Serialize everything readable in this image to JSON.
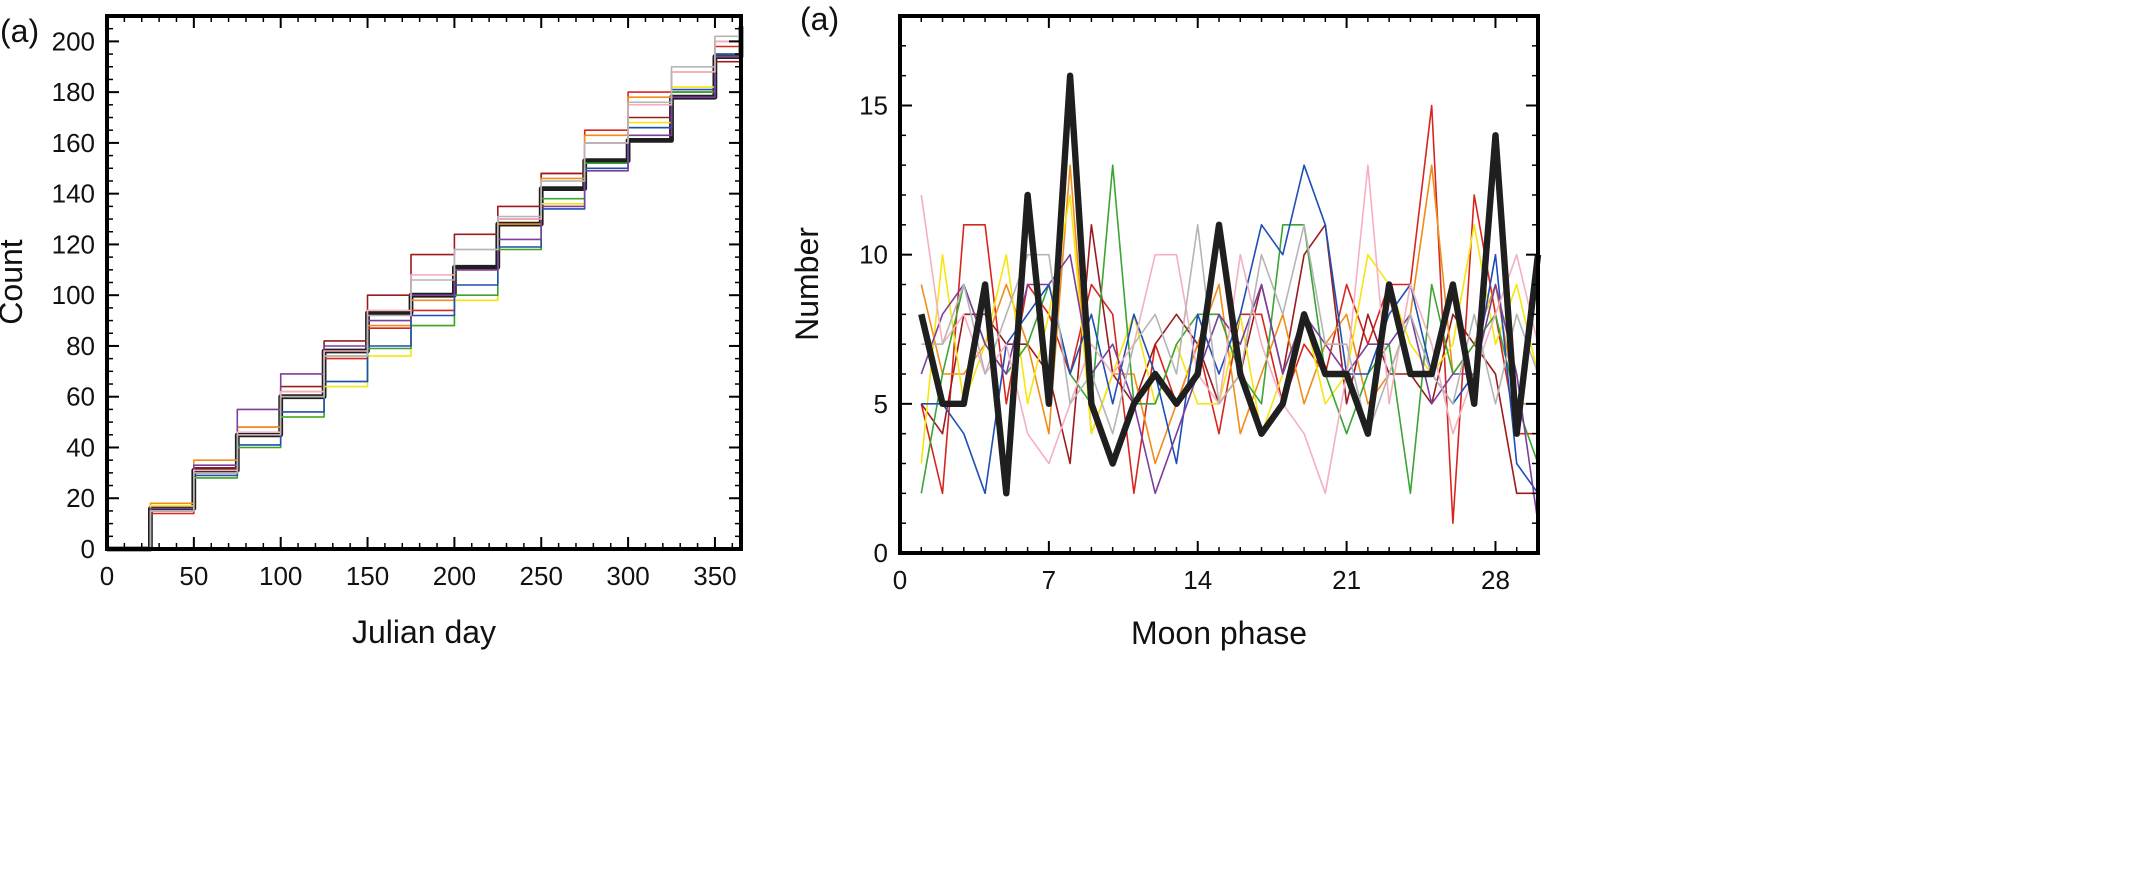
{
  "chart_data": [
    {
      "type": "line",
      "panel_label": "(a)",
      "xlabel": "Julian day",
      "ylabel": "Count",
      "xlim": [
        0,
        365
      ],
      "ylim": [
        0,
        210
      ],
      "xticks": [
        0,
        50,
        100,
        150,
        200,
        250,
        300,
        350
      ],
      "yticks": [
        0,
        20,
        40,
        60,
        80,
        100,
        120,
        140,
        160,
        180,
        200
      ],
      "grid": false,
      "x": [
        0,
        25,
        50,
        75,
        100,
        125,
        150,
        175,
        200,
        225,
        250,
        275,
        300,
        325,
        350,
        365
      ],
      "series": [
        {
          "color": "#1f1f1f",
          "width": 3,
          "values": [
            0,
            16,
            31,
            45,
            60,
            78,
            93,
            100,
            111,
            128,
            142,
            153,
            161,
            178,
            194,
            206
          ]
        },
        {
          "color": "#d7261e",
          "width": 1,
          "values": [
            0,
            14,
            30,
            45,
            60,
            75,
            87,
            94,
            110,
            130,
            148,
            165,
            180,
            188,
            198,
            205
          ]
        },
        {
          "color": "#9b1b1f",
          "width": 1,
          "values": [
            0,
            15,
            32,
            48,
            64,
            82,
            100,
            116,
            124,
            135,
            148,
            160,
            170,
            180,
            192,
            206
          ]
        },
        {
          "color": "#f08c1a",
          "width": 1,
          "values": [
            0,
            18,
            35,
            48,
            62,
            76,
            88,
            98,
            110,
            128,
            146,
            163,
            178,
            188,
            200,
            206
          ]
        },
        {
          "color": "#f5e60f",
          "width": 1,
          "values": [
            0,
            17,
            28,
            40,
            52,
            64,
            76,
            88,
            98,
            118,
            136,
            150,
            168,
            182,
            194,
            205
          ]
        },
        {
          "color": "#3aa535",
          "width": 1,
          "values": [
            0,
            15,
            28,
            40,
            52,
            66,
            79,
            88,
            100,
            118,
            138,
            152,
            166,
            180,
            195,
            207
          ]
        },
        {
          "color": "#1f4fb4",
          "width": 1,
          "values": [
            0,
            15,
            29,
            41,
            54,
            66,
            80,
            92,
            104,
            119,
            134,
            150,
            166,
            181,
            195,
            205
          ]
        },
        {
          "color": "#7b3f9e",
          "width": 1,
          "values": [
            0,
            16,
            33,
            55,
            69,
            80,
            90,
            100,
            110,
            122,
            135,
            149,
            163,
            178,
            194,
            205
          ]
        },
        {
          "color": "#f4b0c0",
          "width": 1,
          "values": [
            0,
            15,
            31,
            46,
            62,
            78,
            94,
            108,
            118,
            130,
            145,
            160,
            175,
            188,
            200,
            206
          ]
        },
        {
          "color": "#b5b5b5",
          "width": 1,
          "values": [
            0,
            15,
            30,
            45,
            60,
            76,
            92,
            106,
            118,
            131,
            145,
            160,
            176,
            190,
            202,
            207
          ]
        }
      ]
    },
    {
      "type": "line",
      "panel_label": "(a)",
      "xlabel": "Moon phase",
      "ylabel": "Number",
      "xlim": [
        0,
        30
      ],
      "ylim": [
        0,
        18
      ],
      "xticks": [
        0,
        7,
        14,
        21,
        28
      ],
      "yticks": [
        0,
        5,
        10,
        15
      ],
      "grid": false,
      "x": [
        1,
        2,
        3,
        4,
        5,
        6,
        7,
        8,
        9,
        10,
        11,
        12,
        13,
        14,
        15,
        16,
        17,
        18,
        19,
        20,
        21,
        22,
        23,
        24,
        25,
        26,
        27,
        28,
        29,
        30
      ],
      "series": [
        {
          "color": "#d7261e",
          "width": 1,
          "values": [
            5,
            2,
            11,
            11,
            5,
            9,
            8,
            6,
            9,
            8,
            2,
            7,
            5,
            7,
            4,
            8,
            8,
            5,
            7,
            6,
            9,
            7,
            9,
            9,
            15,
            1,
            12,
            8,
            4,
            4
          ]
        },
        {
          "color": "#9b1b1f",
          "width": 1,
          "values": [
            5,
            4,
            8,
            8,
            7,
            7,
            6,
            3,
            11,
            6,
            5,
            7,
            8,
            7,
            5,
            6,
            9,
            6,
            10,
            11,
            5,
            8,
            6,
            6,
            5,
            8,
            7,
            6,
            2,
            2
          ]
        },
        {
          "color": "#f08c1a",
          "width": 1,
          "values": [
            9,
            6,
            6,
            7,
            9,
            7,
            4,
            13,
            4,
            6,
            6,
            3,
            5,
            7,
            9,
            4,
            6,
            8,
            5,
            7,
            8,
            5,
            6,
            8,
            13,
            6,
            7,
            9,
            5,
            5
          ]
        },
        {
          "color": "#f5e60f",
          "width": 1,
          "values": [
            3,
            10,
            5,
            7,
            10,
            5,
            8,
            12,
            4,
            6,
            8,
            5,
            7,
            5,
            5,
            8,
            4,
            6,
            8,
            5,
            6,
            10,
            9,
            7,
            6,
            7,
            11,
            7,
            9,
            6
          ]
        },
        {
          "color": "#3aa535",
          "width": 1,
          "values": [
            2,
            6,
            9,
            7,
            6,
            7,
            9,
            6,
            5,
            13,
            5,
            5,
            7,
            8,
            8,
            6,
            5,
            11,
            11,
            6,
            4,
            6,
            7,
            2,
            9,
            6,
            7,
            8,
            5,
            3
          ]
        },
        {
          "color": "#1f4fb4",
          "width": 1,
          "values": [
            5,
            5,
            4,
            2,
            7,
            8,
            9,
            6,
            8,
            5,
            8,
            6,
            3,
            8,
            6,
            8,
            11,
            10,
            13,
            11,
            6,
            6,
            8,
            9,
            6,
            5,
            6,
            10,
            3,
            2
          ]
        },
        {
          "color": "#7b3f9e",
          "width": 1,
          "values": [
            6,
            8,
            9,
            7,
            6,
            9,
            9,
            10,
            6,
            7,
            5,
            2,
            4,
            6,
            8,
            7,
            9,
            6,
            8,
            7,
            6,
            7,
            7,
            8,
            5,
            6,
            6,
            9,
            6,
            1
          ]
        },
        {
          "color": "#f4b0c0",
          "width": 1,
          "values": [
            12,
            7,
            8,
            6,
            7,
            4,
            3,
            5,
            7,
            6,
            7,
            10,
            10,
            6,
            5,
            10,
            7,
            5,
            4,
            2,
            6,
            13,
            5,
            9,
            7,
            4,
            6,
            8,
            10,
            7
          ]
        },
        {
          "color": "#b5b5b5",
          "width": 1,
          "values": [
            7,
            7,
            9,
            6,
            8,
            10,
            10,
            5,
            6,
            4,
            7,
            8,
            6,
            11,
            5,
            6,
            10,
            8,
            11,
            7,
            7,
            4,
            6,
            8,
            6,
            5,
            8,
            5,
            8,
            6
          ]
        },
        {
          "color": "#1f1f1f",
          "width": 4,
          "values": [
            8,
            5,
            5,
            9,
            2,
            12,
            5,
            16,
            5,
            3,
            5,
            6,
            5,
            6,
            11,
            6,
            4,
            5,
            8,
            6,
            6,
            4,
            9,
            6,
            6,
            9,
            5,
            14,
            4,
            10
          ]
        }
      ]
    }
  ]
}
